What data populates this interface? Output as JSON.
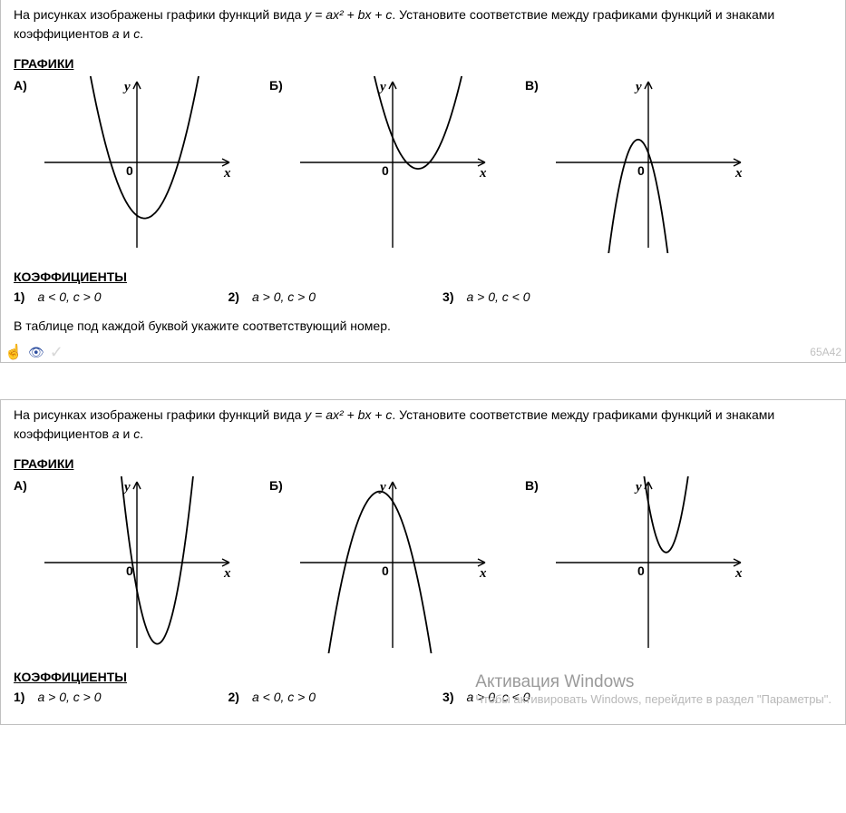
{
  "problems": [
    {
      "task_pre": "На рисунках изображены графики функций вида ",
      "formula": "y = ax² + bx + c",
      "task_post": ". Установите соответствие между графиками функций и знаками коэффициентов ",
      "coef_a": "a",
      "conj": " и ",
      "coef_c": "c",
      "task_end": ".",
      "graphs_header": "ГРАФИКИ",
      "graph_letters": {
        "a": "А)",
        "b": "Б)",
        "c": "В)"
      },
      "coeff_header": "КОЭФФИЦИЕНТЫ",
      "coefficients": [
        {
          "num": "1)",
          "text": "a < 0, c > 0"
        },
        {
          "num": "2)",
          "text": "a > 0, c > 0"
        },
        {
          "num": "3)",
          "text": "a > 0, c < 0"
        }
      ],
      "instruction": "В таблице под каждой буквой укажите соответствующий номер.",
      "code": "65A42",
      "graph_data": {
        "a": {
          "a_sign": 1,
          "vertex_x": 0.3,
          "vertex_y": -2.2,
          "width": 0.9
        },
        "b": {
          "a_sign": 1,
          "vertex_x": 1.0,
          "vertex_y": -0.25,
          "width": 0.9
        },
        "c": {
          "a_sign": -1,
          "vertex_x": -0.4,
          "vertex_y": 0.9,
          "width": 0.55
        }
      }
    },
    {
      "task_pre": "На рисунках изображены графики функций вида ",
      "formula": "y = ax² + bx + c",
      "task_post": ". Установите соответствие между графиками функций и знаками коэффициентов ",
      "coef_a": "a",
      "conj": " и ",
      "coef_c": "c",
      "task_end": ".",
      "graphs_header": "ГРАФИКИ",
      "graph_letters": {
        "a": "А)",
        "b": "Б)",
        "c": "В)"
      },
      "coeff_header": "КОЭФФИЦИЕНТЫ",
      "coefficients": [
        {
          "num": "1)",
          "text": "a > 0, c > 0"
        },
        {
          "num": "2)",
          "text": "a < 0, c > 0"
        },
        {
          "num": "3)",
          "text": "a > 0, c < 0"
        }
      ],
      "instruction": "",
      "code": "",
      "graph_data": {
        "a": {
          "a_sign": 1,
          "vertex_x": 0.8,
          "vertex_y": -3.2,
          "width": 0.55
        },
        "b": {
          "a_sign": -1,
          "vertex_x": -0.5,
          "vertex_y": 2.8,
          "width": 0.8
        },
        "c": {
          "a_sign": 1,
          "vertex_x": 0.7,
          "vertex_y": 0.4,
          "width": 0.5
        }
      }
    }
  ],
  "axis_labels": {
    "x": "x",
    "y": "y",
    "origin": "0"
  },
  "watermark": {
    "line1": "Активация Windows",
    "line2": "Чтобы активировать Windows, перейдите в раздел \"Параметры\"."
  },
  "style": {
    "axis_color": "#000000",
    "curve_color": "#000000",
    "background": "#ffffff",
    "scale": 28
  }
}
